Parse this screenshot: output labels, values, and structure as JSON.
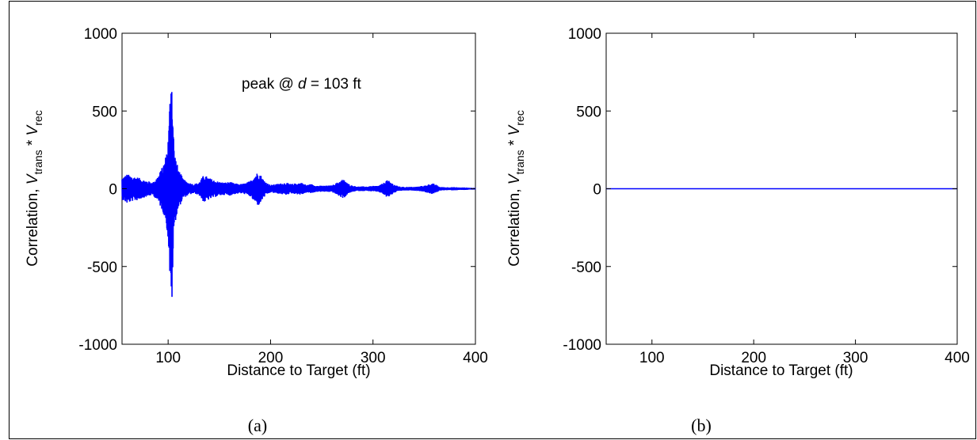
{
  "chart_data": [
    {
      "type": "line",
      "caption": "(a)",
      "xlabel": "Distance to Target  (ft)",
      "ylabel": {
        "prefix": "Correlation,  ",
        "v1": "V",
        "sub1": "trans",
        "mid": " * ",
        "v2": "V",
        "sub2": "rec"
      },
      "xlim": [
        55,
        400
      ],
      "ylim": [
        -1000,
        1000
      ],
      "xticks": [
        100,
        200,
        300,
        400
      ],
      "yticks": [
        -1000,
        -500,
        0,
        500,
        1000
      ],
      "annotation": {
        "prefix": "peak @ ",
        "var": "d",
        "suffix": " = 103 ft"
      },
      "color": "#0000ff",
      "series": [
        {
          "envelope": {
            "x": [
              55,
              60,
              65,
              70,
              75,
              80,
              85,
              90,
              95,
              98,
              100,
              101,
              102,
              103,
              104,
              105,
              106,
              108,
              110,
              115,
              120,
              125,
              130,
              135,
              140,
              145,
              150,
              155,
              160,
              165,
              170,
              175,
              180,
              185,
              188,
              190,
              193,
              197,
              200,
              205,
              210,
              215,
              220,
              225,
              230,
              235,
              240,
              245,
              250,
              255,
              260,
              265,
              270,
              273,
              275,
              280,
              285,
              290,
              295,
              300,
              305,
              310,
              313,
              316,
              320,
              325,
              330,
              335,
              340,
              345,
              350,
              355,
              358,
              362,
              365,
              370,
              375,
              380,
              385,
              390,
              395,
              400
            ],
            "amp": [
              70,
              95,
              80,
              75,
              60,
              50,
              40,
              80,
              150,
              220,
              330,
              450,
              650,
              820,
              700,
              420,
              250,
              180,
              130,
              60,
              40,
              30,
              40,
              90,
              70,
              55,
              45,
              40,
              45,
              35,
              30,
              35,
              50,
              90,
              110,
              95,
              60,
              35,
              25,
              30,
              35,
              40,
              30,
              35,
              40,
              25,
              30,
              20,
              20,
              20,
              22,
              40,
              60,
              55,
              35,
              20,
              15,
              15,
              15,
              18,
              20,
              35,
              55,
              50,
              30,
              15,
              12,
              12,
              12,
              15,
              20,
              30,
              35,
              25,
              12,
              10,
              10,
              10,
              8,
              8,
              6,
              5
            ]
          }
        }
      ]
    },
    {
      "type": "line",
      "caption": "(b)",
      "xlabel": "Distance to Target  (ft)",
      "ylabel": {
        "prefix": "Correlation,  ",
        "v1": "V",
        "sub1": "trans",
        "mid": " * ",
        "v2": "V",
        "sub2": "rec"
      },
      "xlim": [
        55,
        400
      ],
      "ylim": [
        -1000,
        1000
      ],
      "xticks": [
        100,
        200,
        300,
        400
      ],
      "yticks": [
        -1000,
        -500,
        0,
        500,
        1000
      ],
      "color": "#0000ff",
      "series": [
        {
          "x": [
            55,
            400
          ],
          "y": [
            0,
            0
          ]
        }
      ]
    }
  ]
}
